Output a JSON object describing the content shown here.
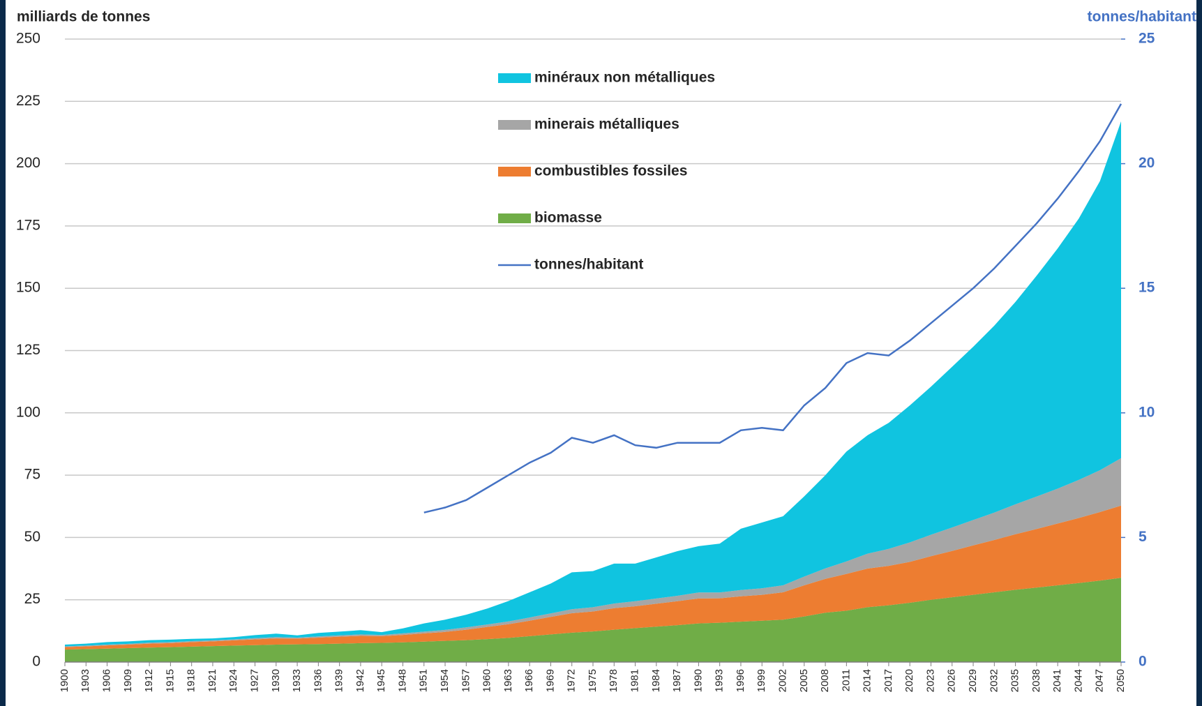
{
  "chart_data": {
    "type": "stacked_area",
    "y_label": "milliards de tonnes",
    "y2_label": "tonnes/habitant",
    "categories": [
      "1900",
      "1903",
      "1906",
      "1909",
      "1912",
      "1915",
      "1918",
      "1921",
      "1924",
      "1927",
      "1930",
      "1933",
      "1936",
      "1939",
      "1942",
      "1945",
      "1948",
      "1951",
      "1954",
      "1957",
      "1960",
      "1963",
      "1966",
      "1969",
      "1972",
      "1975",
      "1978",
      "1981",
      "1984",
      "1987",
      "1990",
      "1993",
      "1996",
      "1999",
      "2002",
      "2005",
      "2008",
      "2011",
      "2014",
      "2017",
      "2020",
      "2023",
      "2026",
      "2029",
      "2032",
      "2035",
      "2038",
      "2041",
      "2044",
      "2047",
      "2050"
    ],
    "series": [
      {
        "name": "biomasse",
        "color": "#70ad47",
        "values": [
          5.0,
          5.2,
          5.4,
          5.6,
          5.8,
          6.0,
          6.2,
          6.4,
          6.6,
          6.8,
          7.0,
          7.1,
          7.2,
          7.4,
          7.6,
          7.7,
          7.9,
          8.2,
          8.5,
          8.8,
          9.2,
          9.7,
          10.4,
          11.1,
          11.8,
          12.3,
          13.0,
          13.6,
          14.2,
          14.8,
          15.5,
          15.8,
          16.2,
          16.6,
          17.0,
          18.3,
          19.8,
          20.6,
          22.0,
          22.8,
          23.8,
          25.0,
          26.0,
          27.0,
          28.0,
          29.0,
          29.9,
          30.8,
          31.7,
          32.7,
          33.8
        ]
      },
      {
        "name": "combustibles fossiles",
        "color": "#ed7d31",
        "values": [
          1.0,
          1.1,
          1.3,
          1.4,
          1.6,
          1.6,
          1.8,
          1.9,
          2.1,
          2.3,
          2.5,
          2.3,
          2.6,
          2.8,
          2.9,
          2.7,
          3.0,
          3.3,
          3.6,
          4.2,
          4.9,
          5.5,
          6.2,
          7.0,
          7.8,
          8.0,
          8.6,
          8.8,
          9.2,
          9.6,
          10.0,
          9.8,
          10.2,
          10.4,
          11.0,
          12.5,
          13.6,
          14.8,
          15.5,
          15.8,
          16.4,
          17.5,
          18.6,
          19.8,
          21.0,
          22.3,
          23.5,
          24.8,
          26.1,
          27.5,
          29.0
        ]
      },
      {
        "name": "minerais métalliques",
        "color": "#a6a6a6",
        "values": [
          0.3,
          0.3,
          0.3,
          0.3,
          0.4,
          0.4,
          0.4,
          0.4,
          0.4,
          0.5,
          0.5,
          0.4,
          0.5,
          0.5,
          0.6,
          0.5,
          0.6,
          0.7,
          0.8,
          0.9,
          1.0,
          1.1,
          1.3,
          1.4,
          1.6,
          1.7,
          1.9,
          2.0,
          2.1,
          2.2,
          2.4,
          2.3,
          2.5,
          2.6,
          2.8,
          3.5,
          4.2,
          5.0,
          6.0,
          6.8,
          7.8,
          8.6,
          9.4,
          10.2,
          11.0,
          12.0,
          13.0,
          14.0,
          15.3,
          16.8,
          19.0
        ]
      },
      {
        "name": "minéraux non métalliques",
        "color": "#10c4e0",
        "values": [
          0.7,
          0.8,
          1.0,
          1.0,
          1.0,
          1.0,
          0.9,
          0.8,
          0.9,
          1.2,
          1.4,
          0.9,
          1.4,
          1.5,
          1.7,
          1.1,
          2.0,
          3.3,
          4.1,
          5.1,
          6.4,
          8.2,
          10.1,
          12.0,
          14.8,
          14.5,
          16.0,
          15.1,
          16.5,
          17.9,
          18.6,
          19.6,
          24.6,
          26.4,
          27.7,
          32.2,
          37.4,
          44.1,
          47.5,
          50.6,
          55.0,
          59.4,
          64.5,
          69.5,
          75.0,
          81.2,
          88.6,
          96.4,
          104.9,
          116.0,
          135.2
        ]
      },
      {
        "name": "tonnes/habitant",
        "color": "#4472c4",
        "type": "line",
        "axis": "y2",
        "values": [
          null,
          null,
          null,
          null,
          null,
          null,
          null,
          null,
          null,
          null,
          null,
          null,
          null,
          null,
          null,
          null,
          null,
          6.0,
          6.2,
          6.5,
          7.0,
          7.5,
          8.0,
          8.4,
          9.0,
          8.8,
          9.1,
          8.7,
          8.6,
          8.8,
          8.8,
          8.8,
          9.3,
          9.4,
          9.3,
          10.3,
          11.0,
          12.0,
          12.4,
          12.3,
          12.9,
          13.6,
          14.3,
          15.0,
          15.8,
          16.7,
          17.6,
          18.6,
          19.7,
          20.9,
          22.4
        ]
      }
    ],
    "ylim": [
      0,
      250
    ],
    "yticks": [
      0,
      25,
      50,
      75,
      100,
      125,
      150,
      175,
      200,
      225,
      250
    ],
    "y2lim": [
      0,
      25
    ],
    "y2ticks": [
      0,
      5,
      10,
      15,
      20,
      25
    ],
    "grid": true
  }
}
